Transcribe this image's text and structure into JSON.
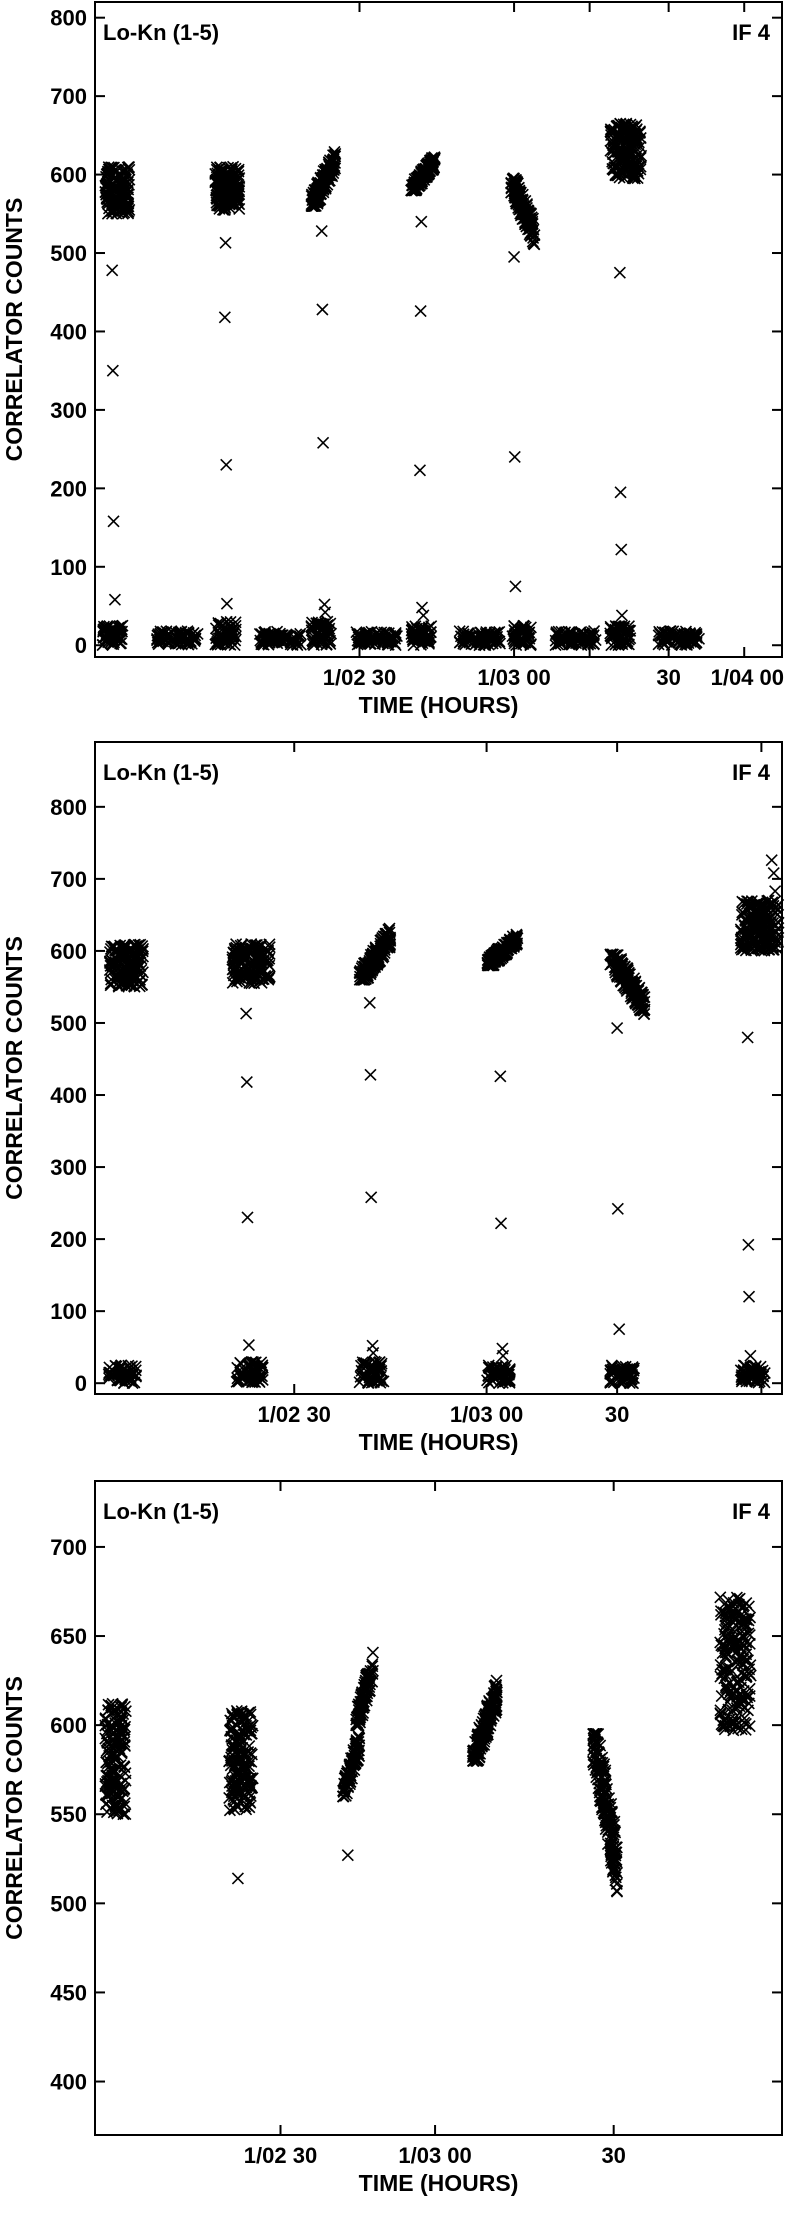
{
  "chart_data": [
    {
      "type": "scatter",
      "corner_left": "Lo-Kn (1-5)",
      "corner_right": "IF 4",
      "xlabel": "TIME (HOURS)",
      "ylabel": "CORRELATOR COUNTS",
      "xlim": [
        0,
        100
      ],
      "ylim": [
        -15,
        820
      ],
      "yticks": [
        0,
        100,
        200,
        300,
        400,
        500,
        600,
        700,
        800
      ],
      "xticks": [
        {
          "x": 38.5,
          "label": "1/02 30"
        },
        {
          "x": 61.0,
          "label": "1/03 00"
        },
        {
          "x": 72.0,
          "label": ""
        },
        {
          "x": 83.5,
          "label": "30"
        },
        {
          "x": 94.5,
          "label": ""
        },
        {
          "x": 106.0,
          "label": "1/04 00"
        }
      ],
      "clusters": [
        {
          "x": [
            1.5,
            5.0
          ],
          "y": [
            550,
            610
          ],
          "n": 160
        },
        {
          "x": [
            1.0,
            4.0
          ],
          "y": [
            0,
            25
          ],
          "n": 60
        },
        {
          "x": [
            9.0,
            15.0
          ],
          "y": [
            0,
            18
          ],
          "n": 80
        },
        {
          "x": [
            17.5,
            21.0
          ],
          "y": [
            555,
            610
          ],
          "n": 160
        },
        {
          "x": [
            17.5,
            20.5
          ],
          "y": [
            0,
            30
          ],
          "n": 60
        },
        {
          "x": [
            24.0,
            30.0
          ],
          "y": [
            0,
            18
          ],
          "n": 80
        },
        {
          "x": [
            31.5,
            35.0
          ],
          "y": [
            560,
            640
          ],
          "n": 160,
          "trend": true
        },
        {
          "x": [
            31.5,
            34.5
          ],
          "y": [
            0,
            30
          ],
          "n": 60
        },
        {
          "x": [
            38.0,
            44.0
          ],
          "y": [
            0,
            18
          ],
          "n": 80
        },
        {
          "x": [
            46.0,
            49.5
          ],
          "y": [
            580,
            630
          ],
          "n": 160,
          "trend": true
        },
        {
          "x": [
            46.0,
            49.0
          ],
          "y": [
            0,
            25
          ],
          "n": 60
        },
        {
          "x": [
            53.0,
            59.0
          ],
          "y": [
            0,
            18
          ],
          "n": 80
        },
        {
          "x": [
            60.5,
            64.0
          ],
          "y": [
            500,
            595
          ],
          "n": 160,
          "trend": true,
          "down": true
        },
        {
          "x": [
            60.5,
            63.5
          ],
          "y": [
            0,
            25
          ],
          "n": 60
        },
        {
          "x": [
            67.0,
            73.0
          ],
          "y": [
            0,
            18
          ],
          "n": 80
        },
        {
          "x": [
            75.0,
            79.5
          ],
          "y": [
            595,
            665
          ],
          "n": 180
        },
        {
          "x": [
            75.0,
            78.0
          ],
          "y": [
            0,
            25
          ],
          "n": 60
        },
        {
          "x": [
            82.0,
            88.0
          ],
          "y": [
            0,
            18
          ],
          "n": 80
        }
      ],
      "outliers": [
        {
          "x": 2.5,
          "y": 478
        },
        {
          "x": 2.6,
          "y": 350
        },
        {
          "x": 2.7,
          "y": 158
        },
        {
          "x": 2.9,
          "y": 58
        },
        {
          "x": 19.0,
          "y": 513
        },
        {
          "x": 18.9,
          "y": 418
        },
        {
          "x": 19.1,
          "y": 230
        },
        {
          "x": 19.2,
          "y": 53
        },
        {
          "x": 33.0,
          "y": 528
        },
        {
          "x": 33.1,
          "y": 428
        },
        {
          "x": 33.2,
          "y": 258
        },
        {
          "x": 33.4,
          "y": 52
        },
        {
          "x": 33.5,
          "y": 42
        },
        {
          "x": 47.5,
          "y": 540
        },
        {
          "x": 47.4,
          "y": 426
        },
        {
          "x": 47.3,
          "y": 223
        },
        {
          "x": 47.6,
          "y": 48
        },
        {
          "x": 47.8,
          "y": 38
        },
        {
          "x": 61.0,
          "y": 495
        },
        {
          "x": 61.1,
          "y": 240
        },
        {
          "x": 61.2,
          "y": 75
        },
        {
          "x": 76.4,
          "y": 475
        },
        {
          "x": 76.5,
          "y": 195
        },
        {
          "x": 76.6,
          "y": 122
        },
        {
          "x": 76.7,
          "y": 38
        }
      ]
    },
    {
      "type": "scatter",
      "corner_left": "Lo-Kn (1-5)",
      "corner_right": "IF 4",
      "xlabel": "TIME (HOURS)",
      "ylabel": "CORRELATOR COUNTS",
      "xlim": [
        0,
        100
      ],
      "ylim": [
        -15,
        890
      ],
      "yticks": [
        0,
        100,
        200,
        300,
        400,
        500,
        600,
        700,
        800
      ],
      "xticks": [
        {
          "x": 29.0,
          "label": "1/02 30"
        },
        {
          "x": 57.0,
          "label": "1/03 00"
        },
        {
          "x": 76.0,
          "label": "30"
        },
        {
          "x": 97.0,
          "label": ""
        }
      ],
      "clusters": [
        {
          "x": [
            2.0,
            7.0
          ],
          "y": [
            550,
            610
          ],
          "n": 170
        },
        {
          "x": [
            2.0,
            6.0
          ],
          "y": [
            0,
            25
          ],
          "n": 60
        },
        {
          "x": [
            20.0,
            25.5
          ],
          "y": [
            555,
            610
          ],
          "n": 170
        },
        {
          "x": [
            20.5,
            24.5
          ],
          "y": [
            0,
            30
          ],
          "n": 60
        },
        {
          "x": [
            38.5,
            43.0
          ],
          "y": [
            560,
            640
          ],
          "n": 170,
          "trend": true
        },
        {
          "x": [
            38.5,
            42.0
          ],
          "y": [
            0,
            30
          ],
          "n": 60
        },
        {
          "x": [
            57.0,
            61.5
          ],
          "y": [
            580,
            630
          ],
          "n": 170,
          "trend": true
        },
        {
          "x": [
            57.0,
            60.5
          ],
          "y": [
            0,
            25
          ],
          "n": 60
        },
        {
          "x": [
            75.0,
            80.0
          ],
          "y": [
            500,
            595
          ],
          "n": 170,
          "trend": true,
          "down": true
        },
        {
          "x": [
            75.0,
            78.5
          ],
          "y": [
            0,
            25
          ],
          "n": 60
        },
        {
          "x": [
            94.0,
            99.5
          ],
          "y": [
            600,
            670
          ],
          "n": 200
        },
        {
          "x": [
            94.0,
            97.5
          ],
          "y": [
            0,
            25
          ],
          "n": 60
        }
      ],
      "outliers": [
        {
          "x": 22.0,
          "y": 513
        },
        {
          "x": 22.1,
          "y": 418
        },
        {
          "x": 22.2,
          "y": 230
        },
        {
          "x": 22.4,
          "y": 53
        },
        {
          "x": 40.0,
          "y": 528
        },
        {
          "x": 40.1,
          "y": 428
        },
        {
          "x": 40.2,
          "y": 258
        },
        {
          "x": 40.4,
          "y": 52
        },
        {
          "x": 40.5,
          "y": 42
        },
        {
          "x": 59.0,
          "y": 426
        },
        {
          "x": 59.1,
          "y": 222
        },
        {
          "x": 59.3,
          "y": 48
        },
        {
          "x": 59.4,
          "y": 38
        },
        {
          "x": 76.0,
          "y": 493
        },
        {
          "x": 76.1,
          "y": 242
        },
        {
          "x": 76.3,
          "y": 75
        },
        {
          "x": 98.5,
          "y": 726
        },
        {
          "x": 98.8,
          "y": 708
        },
        {
          "x": 99.0,
          "y": 683
        },
        {
          "x": 95.0,
          "y": 480
        },
        {
          "x": 95.1,
          "y": 192
        },
        {
          "x": 95.2,
          "y": 120
        },
        {
          "x": 95.4,
          "y": 38
        }
      ]
    },
    {
      "type": "scatter",
      "corner_left": "Lo-Kn (1-5)",
      "corner_right": "IF 4",
      "xlabel": "TIME (HOURS)",
      "ylabel": "CORRELATOR COUNTS",
      "xlim": [
        0,
        100
      ],
      "ylim": [
        370,
        737
      ],
      "yticks": [
        400,
        450,
        500,
        550,
        600,
        650,
        700
      ],
      "xticks": [
        {
          "x": 27.0,
          "label": "1/02 30"
        },
        {
          "x": 49.5,
          "label": "1/03 00"
        },
        {
          "x": 75.5,
          "label": "30"
        }
      ],
      "clusters": [
        {
          "x": [
            1.5,
            4.5
          ],
          "y": [
            550,
            612
          ],
          "n": 170
        },
        {
          "x": [
            19.5,
            23.0
          ],
          "y": [
            552,
            608
          ],
          "n": 170
        },
        {
          "x": [
            36.0,
            38.5
          ],
          "y": [
            560,
            600
          ],
          "n": 90,
          "trend": true
        },
        {
          "x": [
            38.0,
            40.5
          ],
          "y": [
            600,
            645
          ],
          "n": 90,
          "trend": true
        },
        {
          "x": [
            55.0,
            58.5
          ],
          "y": [
            580,
            630
          ],
          "n": 170,
          "trend": true
        },
        {
          "x": [
            72.5,
            76.0
          ],
          "y": [
            497,
            595
          ],
          "n": 190,
          "trend": true,
          "down": true
        },
        {
          "x": [
            91.0,
            95.5
          ],
          "y": [
            597,
            672
          ],
          "n": 210
        }
      ],
      "outliers": [
        {
          "x": 20.8,
          "y": 514
        },
        {
          "x": 36.8,
          "y": 527
        }
      ]
    }
  ]
}
